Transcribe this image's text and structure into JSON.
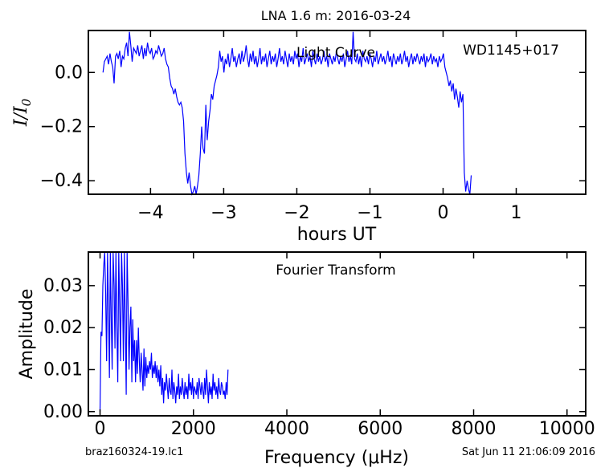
{
  "page": {
    "title": "LNA 1.6 m:  2016-03-24",
    "footer_left": "braz160324-19.lc1",
    "footer_right": "Sat Jun 11 21:06:09 2016"
  },
  "colors": {
    "series": "#0000ff",
    "axes": "#000000",
    "background": "#ffffff"
  },
  "chart_data": [
    {
      "type": "line",
      "annotations": [
        "Light Curve",
        "WD1145+017"
      ],
      "xlabel": "hours UT",
      "ylabel": "I/I0",
      "xlim": [
        -4.85,
        1.95
      ],
      "ylim": [
        -0.45,
        0.155
      ],
      "xticks": [
        -4,
        -3,
        -2,
        -1,
        0,
        1
      ],
      "xtick_labels": [
        "−4",
        "−3",
        "−2",
        "−1",
        "0",
        "1"
      ],
      "yticks": [
        0.0,
        -0.2,
        -0.4
      ],
      "ytick_labels": [
        "0.0",
        "−0.2",
        "−0.4"
      ],
      "grid": false,
      "series": [
        {
          "x_start": -4.65,
          "x_step": 0.019,
          "y": [
            0.0,
            0.04,
            0.05,
            0.06,
            0.03,
            0.07,
            0.04,
            0.02,
            -0.04,
            0.06,
            0.07,
            0.05,
            0.08,
            0.02,
            0.06,
            0.05,
            0.09,
            0.11,
            0.06,
            0.15,
            0.1,
            0.04,
            0.09,
            0.08,
            0.07,
            0.1,
            0.06,
            0.08,
            0.1,
            0.05,
            0.09,
            0.06,
            0.11,
            0.08,
            0.07,
            0.09,
            0.05,
            0.06,
            0.08,
            0.07,
            0.1,
            0.08,
            0.06,
            0.07,
            0.09,
            0.05,
            0.03,
            0.02,
            -0.02,
            -0.05,
            -0.06,
            -0.08,
            -0.06,
            -0.09,
            -0.11,
            -0.12,
            -0.11,
            -0.13,
            -0.18,
            -0.3,
            -0.37,
            -0.41,
            -0.37,
            -0.42,
            -0.45,
            -0.44,
            -0.42,
            -0.45,
            -0.42,
            -0.38,
            -0.3,
            -0.2,
            -0.28,
            -0.3,
            -0.12,
            -0.25,
            -0.18,
            -0.14,
            -0.08,
            -0.1,
            -0.05,
            -0.03,
            -0.01,
            0.02,
            0.08,
            0.04,
            0.06,
            0.0,
            0.05,
            0.03,
            0.07,
            0.02,
            0.05,
            0.09,
            0.04,
            0.06,
            0.02,
            0.05,
            0.07,
            0.03,
            0.08,
            0.04,
            0.06,
            0.1,
            0.05,
            0.02,
            0.07,
            0.04,
            0.08,
            0.03,
            0.06,
            0.02,
            0.05,
            0.09,
            0.03,
            0.06,
            0.04,
            0.07,
            0.02,
            0.05,
            0.08,
            0.03,
            0.06,
            0.04,
            0.07,
            0.02,
            0.05,
            0.09,
            0.04,
            0.06,
            0.03,
            0.08,
            0.05,
            0.02,
            0.07,
            0.04,
            0.06,
            0.03,
            0.08,
            0.05,
            0.07,
            0.02,
            0.06,
            0.04,
            0.09,
            0.03,
            0.05,
            0.07,
            0.04,
            0.06,
            0.02,
            0.08,
            0.05,
            0.03,
            0.07,
            0.04,
            0.06,
            0.03,
            0.05,
            0.08,
            0.04,
            0.06,
            0.02,
            0.07,
            0.05,
            0.03,
            0.06,
            0.04,
            0.08,
            0.05,
            0.03,
            0.06,
            0.04,
            0.07,
            0.02,
            0.05,
            0.08,
            0.04,
            0.06,
            0.03,
            0.15,
            0.05,
            0.04,
            0.07,
            0.03,
            0.06,
            0.02,
            0.08,
            0.05,
            0.04,
            0.06,
            0.03,
            0.07,
            0.05,
            0.02,
            0.06,
            0.04,
            0.08,
            0.03,
            0.05,
            0.07,
            0.04,
            0.06,
            0.03,
            0.05,
            0.08,
            0.04,
            0.06,
            0.02,
            0.07,
            0.05,
            0.03,
            0.06,
            0.04,
            0.07,
            0.03,
            0.05,
            0.08,
            0.04,
            0.06,
            0.02,
            0.05,
            0.07,
            0.03,
            0.06,
            0.04,
            0.07,
            0.05,
            0.03,
            0.06,
            0.04,
            0.07,
            0.02,
            0.06,
            0.04,
            0.05,
            0.07,
            0.03,
            0.06,
            0.04,
            0.05,
            0.02,
            0.06,
            0.04,
            0.05,
            0.07,
            0.02,
            0.0,
            -0.02,
            -0.05,
            -0.03,
            -0.07,
            -0.04,
            -0.1,
            -0.06,
            -0.09,
            -0.13,
            -0.07,
            -0.11,
            -0.08,
            -0.37,
            -0.44,
            -0.4,
            -0.43,
            -0.45,
            -0.38
          ]
        }
      ]
    },
    {
      "type": "line",
      "annotations": [
        "Fourier Transform"
      ],
      "xlabel": "Frequency (μHz)",
      "ylabel": "Amplitude",
      "xlim": [
        -250,
        10400
      ],
      "ylim": [
        -0.001,
        0.038
      ],
      "xticks": [
        0,
        2000,
        4000,
        6000,
        8000,
        10000
      ],
      "xtick_labels": [
        "0",
        "2000",
        "4000",
        "6000",
        "8000",
        "10000"
      ],
      "yticks": [
        0.0,
        0.01,
        0.02,
        0.03
      ],
      "ytick_labels": [
        "0.00",
        "0.01",
        "0.02",
        "0.03"
      ],
      "grid": false,
      "series": [
        {
          "x_start": 0,
          "x_step": 20,
          "y": [
            0.0,
            0.019,
            0.018,
            0.03,
            0.035,
            0.038,
            0.028,
            0.012,
            0.038,
            0.025,
            0.008,
            0.038,
            0.022,
            0.01,
            0.038,
            0.03,
            0.015,
            0.038,
            0.02,
            0.007,
            0.038,
            0.025,
            0.012,
            0.038,
            0.03,
            0.012,
            0.038,
            0.022,
            0.004,
            0.038,
            0.026,
            0.01,
            0.02,
            0.025,
            0.007,
            0.022,
            0.012,
            0.017,
            0.007,
            0.017,
            0.009,
            0.02,
            0.012,
            0.007,
            0.014,
            0.01,
            0.005,
            0.015,
            0.006,
            0.013,
            0.008,
            0.011,
            0.009,
            0.012,
            0.01,
            0.014,
            0.008,
            0.011,
            0.009,
            0.012,
            0.008,
            0.011,
            0.007,
            0.01,
            0.006,
            0.011,
            0.004,
            0.008,
            0.002,
            0.007,
            0.005,
            0.009,
            0.006,
            0.003,
            0.008,
            0.005,
            0.004,
            0.01,
            0.003,
            0.007,
            0.005,
            0.002,
            0.006,
            0.004,
            0.009,
            0.003,
            0.006,
            0.004,
            0.008,
            0.005,
            0.003,
            0.007,
            0.004,
            0.006,
            0.003,
            0.009,
            0.005,
            0.007,
            0.004,
            0.008,
            0.003,
            0.006,
            0.005,
            0.004,
            0.007,
            0.003,
            0.008,
            0.006,
            0.004,
            0.007,
            0.005,
            0.003,
            0.008,
            0.004,
            0.01,
            0.006,
            0.002,
            0.007,
            0.004,
            0.006,
            0.003,
            0.009,
            0.005,
            0.007,
            0.004,
            0.006,
            0.003,
            0.008,
            0.005,
            0.004,
            0.007,
            0.006,
            0.004,
            0.005,
            0.003,
            0.007,
            0.004,
            0.01
          ]
        }
      ]
    }
  ]
}
